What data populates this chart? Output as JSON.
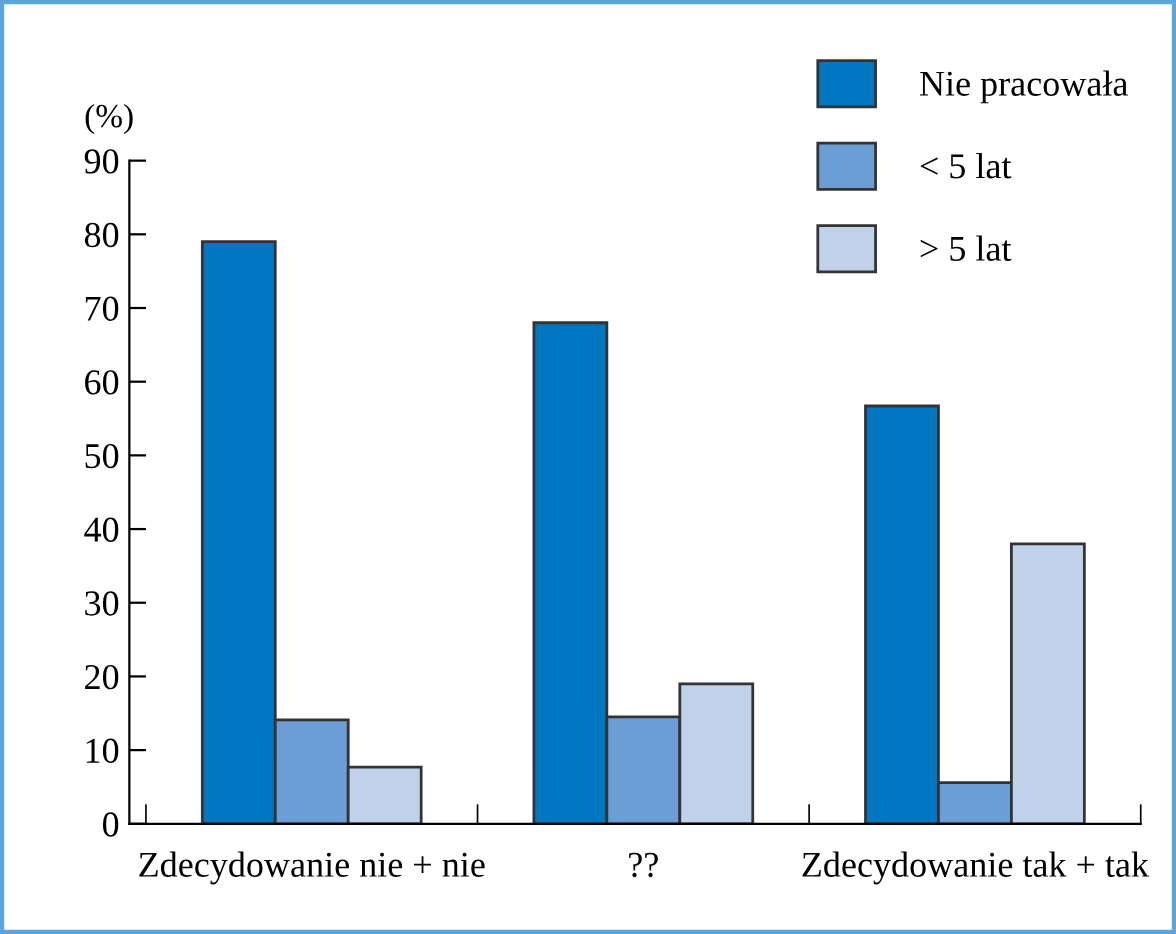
{
  "chart_data": {
    "type": "bar",
    "ylabel": "(%)",
    "categories": [
      "Zdecydowanie nie + nie",
      "??",
      "Zdecydowanie tak + tak"
    ],
    "series": [
      {
        "name": "Nie pracowała",
        "color": "#0077c0",
        "values": [
          79,
          68,
          56.7
        ]
      },
      {
        "name": "< 5 lat",
        "color": "#6b9ed4",
        "values": [
          14.1,
          14.5,
          5.6
        ]
      },
      {
        "name": "> 5 lat",
        "color": "#c0d2ea",
        "values": [
          7.7,
          19,
          38
        ]
      }
    ],
    "ylim": [
      0,
      90
    ],
    "yticks": [
      0,
      10,
      20,
      30,
      40,
      50,
      60,
      70,
      80,
      90
    ],
    "grid": false,
    "legend": "top right"
  }
}
